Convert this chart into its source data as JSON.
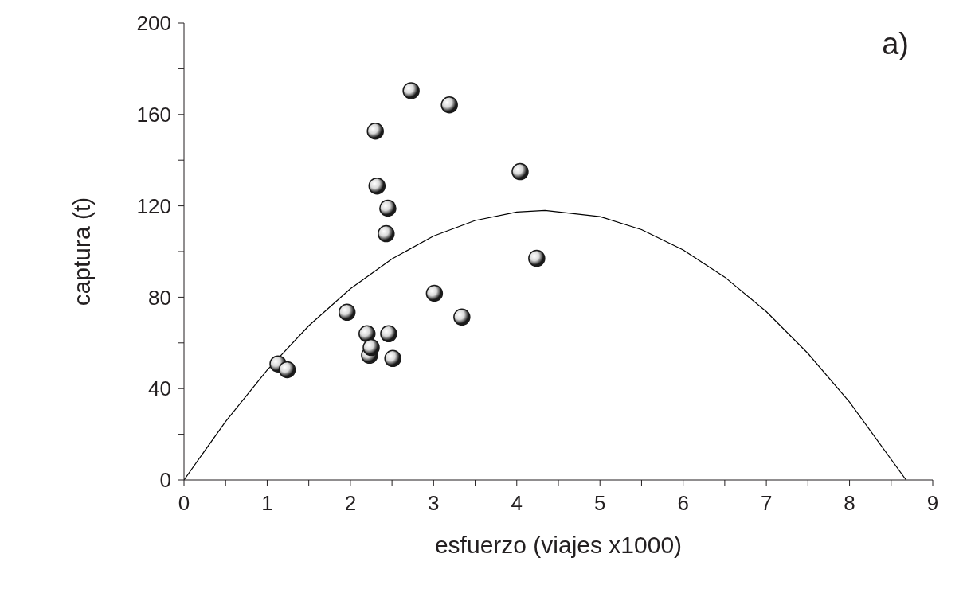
{
  "chart_data": {
    "type": "scatter",
    "xlabel": "esfuerzo (viajes x1000)",
    "ylabel": "captura (t)",
    "annotations": [
      "a)"
    ],
    "xlim": [
      0,
      9
    ],
    "xticks": [
      0,
      {
        "value": 0.5,
        "label": null
      },
      1,
      {
        "value": 1.5,
        "label": null
      },
      2,
      {
        "value": 2.5,
        "label": null
      },
      3,
      {
        "value": 3.5,
        "label": null
      },
      4,
      {
        "value": 4.5,
        "label": null
      },
      5,
      {
        "value": 5.5,
        "label": null
      },
      6,
      {
        "value": 6.5,
        "label": null
      },
      7,
      {
        "value": 7.5,
        "label": null
      },
      8,
      {
        "value": 8.5,
        "label": null
      },
      9
    ],
    "ylim": [
      0,
      200
    ],
    "yticks": [
      0,
      {
        "value": 20,
        "label": null
      },
      40,
      {
        "value": 60,
        "label": null
      },
      80,
      {
        "value": 100,
        "label": null
      },
      120,
      {
        "value": 140,
        "label": null
      },
      160,
      {
        "value": 180,
        "label": null
      },
      200
    ],
    "grid": false,
    "legend": false,
    "marker": "circle",
    "series": [
      {
        "color": "#1a1a1a",
        "x": [
          1.13,
          1.24,
          1.96,
          2.2,
          2.23,
          2.25,
          2.46,
          2.51,
          2.3,
          2.32,
          2.45,
          2.43,
          2.73,
          3.19,
          3.01,
          3.34,
          4.04,
          4.24
        ],
        "values": [
          50.8,
          48.3,
          73.4,
          64,
          54.6,
          58,
          64,
          53.2,
          152.7,
          128.7,
          119,
          107.8,
          170.4,
          164.2,
          81.7,
          71.3,
          135,
          97
        ]
      },
      {
        "type": "line",
        "color": "#000000",
        "line_style": "solid",
        "marker": "none",
        "x": [
          0,
          0.5,
          1,
          1.5,
          2,
          2.5,
          3,
          3.5,
          4,
          4.34,
          5,
          5.5,
          6,
          6.5,
          7,
          7.5,
          8,
          8.68
        ],
        "values": [
          0,
          25.6,
          48.1,
          67.5,
          83.7,
          96.8,
          106.8,
          113.6,
          117.3,
          118,
          115.3,
          109.6,
          100.7,
          88.8,
          73.7,
          55.4,
          34.1,
          0
        ]
      }
    ]
  }
}
